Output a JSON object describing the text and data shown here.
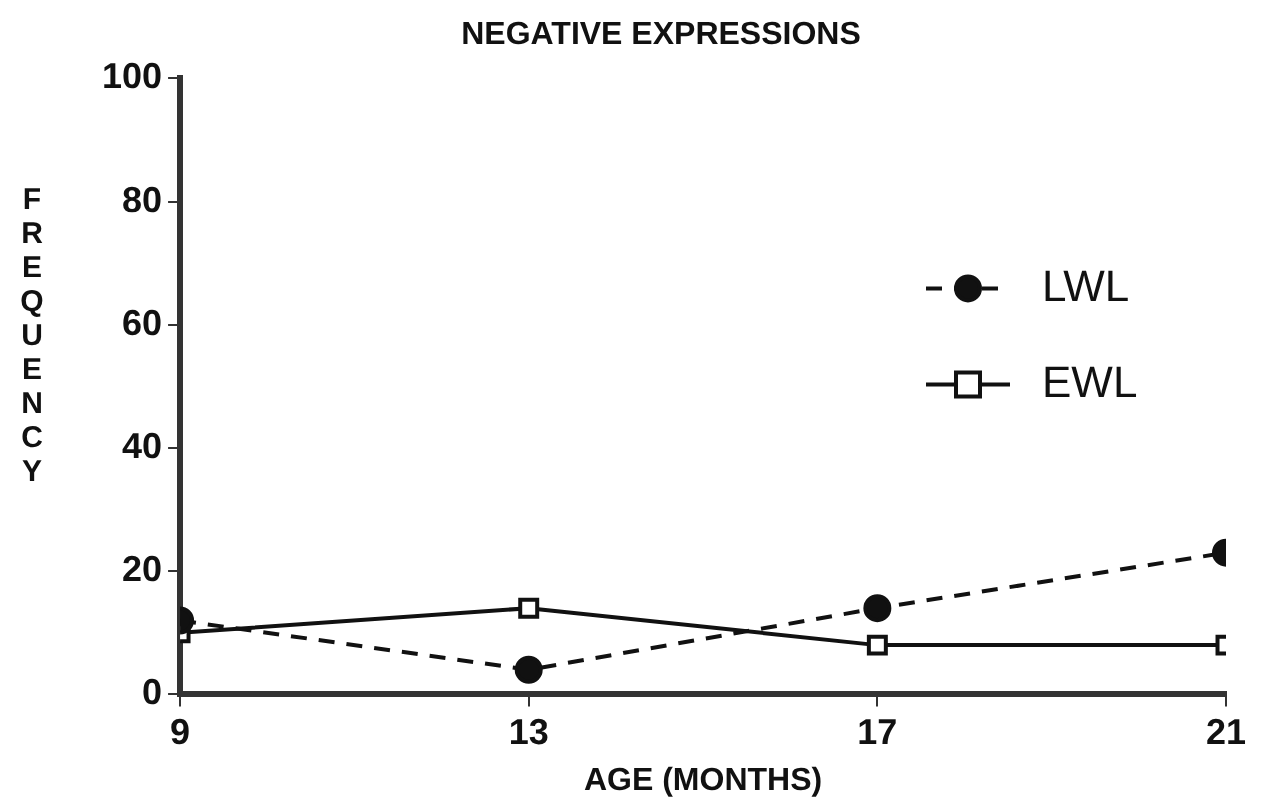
{
  "chart_data": {
    "type": "line",
    "title": "NEGATIVE EXPRESSIONS",
    "xlabel": "AGE (MONTHS)",
    "ylabel": "FREQUENCY",
    "x": [
      9,
      13,
      17,
      21
    ],
    "xlim": [
      9,
      21
    ],
    "xticks": [
      9,
      13,
      17,
      21
    ],
    "ylim": [
      0,
      100
    ],
    "yticks": [
      0,
      20,
      40,
      60,
      80,
      100
    ],
    "grid": false,
    "legend": "right",
    "series": [
      {
        "name": "LWL",
        "color": "#111111",
        "values": [
          12,
          4,
          14,
          23
        ],
        "marker": "circle",
        "line_style": "dashed"
      },
      {
        "name": "EWL",
        "color": "#111111",
        "values": [
          10,
          14,
          8,
          8
        ],
        "marker": "square",
        "line_style": "solid"
      }
    ]
  }
}
